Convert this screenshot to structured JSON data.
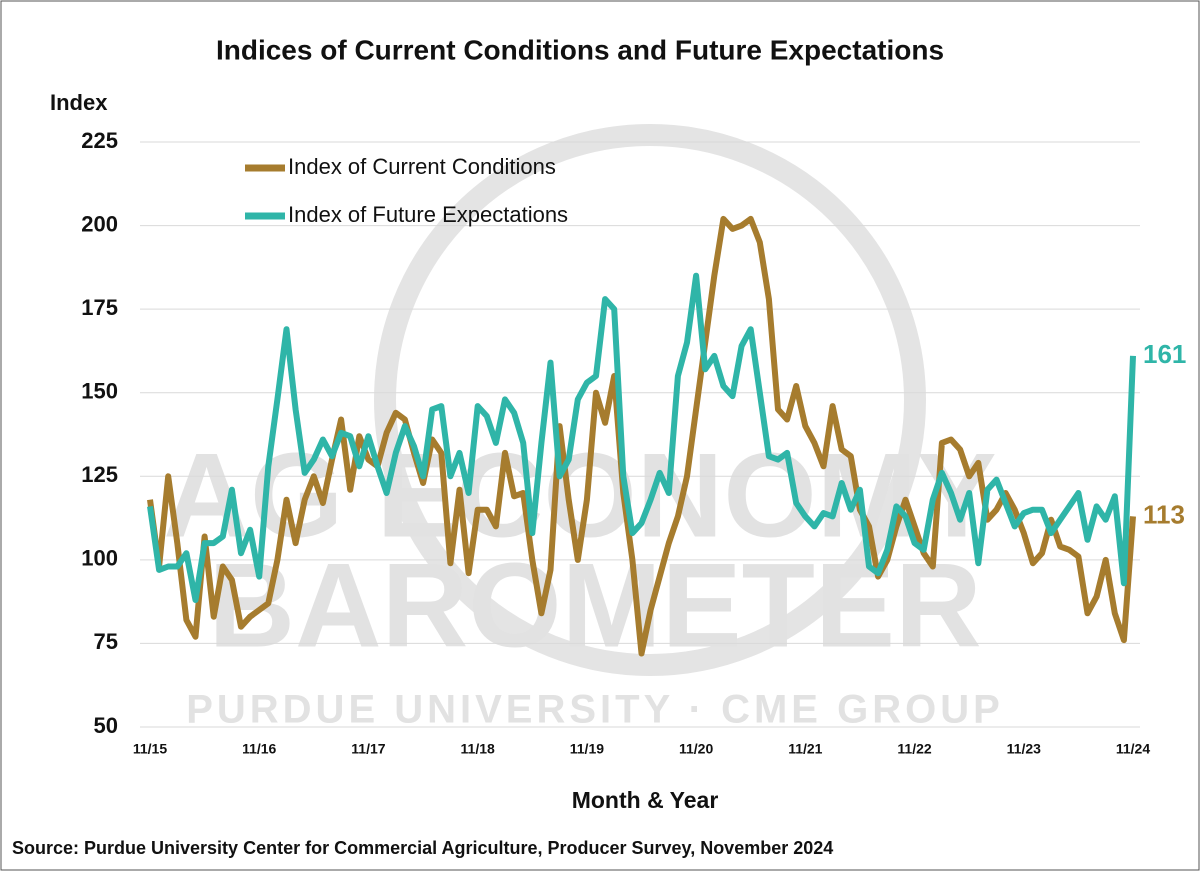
{
  "chart_data": {
    "type": "line",
    "title": "Indices of Current Conditions and Future Expectations",
    "y_label": "Index",
    "x_label": "Month & Year",
    "source": "Source: Purdue University Center for Commercial Agriculture, Producer Survey, November 2024",
    "watermark": [
      "AG ECONOMY",
      "BAROMETER",
      "PURDUE UNIVERSITY · CME GROUP"
    ],
    "categories": [
      "11/15",
      null,
      null,
      null,
      null,
      null,
      null,
      null,
      null,
      null,
      null,
      null,
      "11/16",
      null,
      null,
      null,
      null,
      null,
      null,
      null,
      null,
      null,
      null,
      null,
      "11/17",
      null,
      null,
      null,
      null,
      null,
      null,
      null,
      null,
      null,
      null,
      null,
      "11/18",
      null,
      null,
      null,
      null,
      null,
      null,
      null,
      null,
      null,
      null,
      null,
      "11/19",
      null,
      null,
      null,
      null,
      null,
      null,
      null,
      null,
      null,
      null,
      null,
      "11/20",
      null,
      null,
      null,
      null,
      null,
      null,
      null,
      null,
      null,
      null,
      null,
      "11/21",
      null,
      null,
      null,
      null,
      null,
      null,
      null,
      null,
      null,
      null,
      null,
      "11/22",
      null,
      null,
      null,
      null,
      null,
      null,
      null,
      null,
      null,
      null,
      null,
      "11/23",
      null,
      null,
      null,
      null,
      null,
      null,
      null,
      null,
      null,
      null,
      null,
      "11/24"
    ],
    "series": [
      {
        "name": "Index of Current Conditions",
        "color": "#a67c2e",
        "values": [
          118,
          98,
          125,
          105,
          82,
          77,
          107,
          83,
          98,
          94,
          80,
          83,
          85,
          87,
          100,
          118,
          105,
          118,
          125,
          117,
          130,
          142,
          121,
          137,
          130,
          128,
          138,
          144,
          142,
          132,
          123,
          136,
          132,
          99,
          121,
          96,
          115,
          115,
          110,
          132,
          119,
          120,
          100,
          84,
          97,
          140,
          118,
          100,
          118,
          150,
          141,
          155,
          120,
          100,
          72,
          85,
          95,
          105,
          113,
          125,
          145,
          165,
          185,
          202,
          199,
          200,
          202,
          195,
          178,
          145,
          142,
          152,
          140,
          135,
          128,
          146,
          133,
          131,
          115,
          110,
          95,
          100,
          110,
          118,
          110,
          102,
          98,
          135,
          136,
          133,
          125,
          129,
          112,
          115,
          120,
          115,
          108,
          99,
          102,
          112,
          104,
          103,
          101,
          84,
          89,
          100,
          84,
          76,
          113
        ]
      },
      {
        "name": "Index of Future Expectations",
        "color": "#2fb5a8",
        "values": [
          116,
          97,
          98,
          98,
          102,
          88,
          105,
          105,
          107,
          121,
          102,
          109,
          95,
          128,
          148,
          169,
          145,
          126,
          130,
          136,
          131,
          138,
          137,
          128,
          137,
          128,
          120,
          132,
          140,
          134,
          125,
          145,
          146,
          125,
          132,
          120,
          146,
          143,
          135,
          148,
          144,
          135,
          108,
          135,
          159,
          125,
          130,
          148,
          153,
          155,
          178,
          175,
          125,
          108,
          111,
          118,
          126,
          120,
          155,
          165,
          185,
          157,
          161,
          152,
          149,
          164,
          169,
          150,
          131,
          130,
          132,
          117,
          113,
          110,
          114,
          113,
          123,
          115,
          121,
          98,
          96,
          103,
          116,
          113,
          105,
          103,
          118,
          126,
          120,
          112,
          120,
          99,
          121,
          124,
          117,
          110,
          114,
          115,
          115,
          108,
          112,
          116,
          120,
          106,
          116,
          112,
          119,
          93,
          161
        ]
      }
    ],
    "ylim": [
      50,
      225
    ],
    "yticks": [
      50,
      75,
      100,
      125,
      150,
      175,
      200,
      225
    ],
    "grid": true
  }
}
